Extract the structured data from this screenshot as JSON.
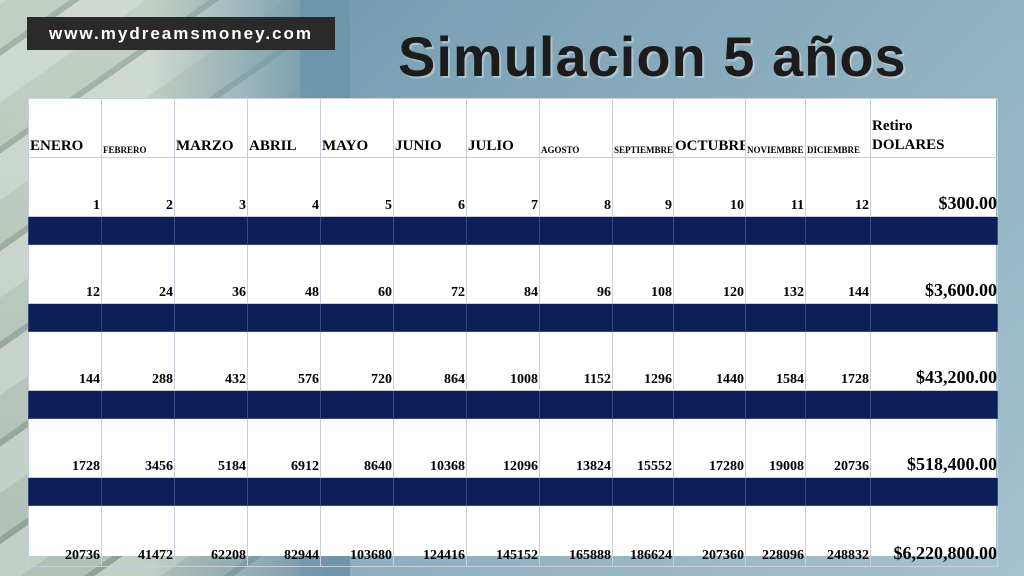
{
  "watermark": "www.mydreamsmoney.com",
  "title": "Simulacion 5 años",
  "table": {
    "headers": [
      "ENERO",
      "FEBRERO",
      "MARZO",
      "ABRIL",
      "MAYO",
      "JUNIO",
      "JULIO",
      "AGOSTO",
      "SEPTIEMBRE",
      "OCTUBRE",
      "NOVIEMBRE",
      "DICIEMBRE"
    ],
    "header_sizes": [
      "big",
      "small",
      "big",
      "big",
      "big",
      "big",
      "big",
      "small",
      "small",
      "big",
      "small",
      "small"
    ],
    "retiro_line1": "Retiro",
    "retiro_line2": "DOLARES",
    "rows": [
      {
        "values": [
          "1",
          "2",
          "3",
          "4",
          "5",
          "6",
          "7",
          "8",
          "9",
          "10",
          "11",
          "12"
        ],
        "total": "$300.00"
      },
      {
        "values": [
          "12",
          "24",
          "36",
          "48",
          "60",
          "72",
          "84",
          "96",
          "108",
          "120",
          "132",
          "144"
        ],
        "total": "$3,600.00"
      },
      {
        "values": [
          "144",
          "288",
          "432",
          "576",
          "720",
          "864",
          "1008",
          "1152",
          "1296",
          "1440",
          "1584",
          "1728"
        ],
        "total": "$43,200.00"
      },
      {
        "values": [
          "1728",
          "3456",
          "5184",
          "6912",
          "8640",
          "10368",
          "12096",
          "13824",
          "15552",
          "17280",
          "19008",
          "20736"
        ],
        "total": "$518,400.00"
      },
      {
        "values": [
          "20736",
          "41472",
          "62208",
          "82944",
          "103680",
          "124416",
          "145152",
          "165888",
          "186624",
          "207360",
          "228096",
          "248832"
        ],
        "total": "$6,220,800.00"
      }
    ]
  },
  "colors": {
    "bar": "#0c1f58",
    "background": "#7da2b5"
  }
}
